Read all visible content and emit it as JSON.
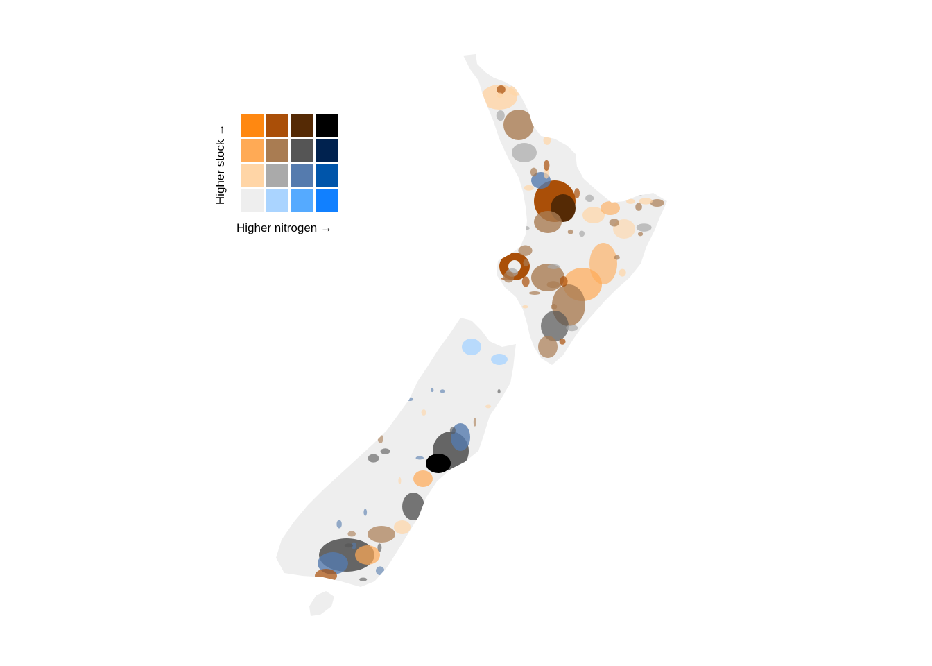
{
  "legend": {
    "y_label": "Higher stock →",
    "x_label": "Higher nitrogen →",
    "grid": [
      [
        "#ff8811",
        "#aa4f08",
        "#552a05",
        "#000000"
      ],
      [
        "#ffaa55",
        "#a97c52",
        "#555555",
        "#00224f"
      ],
      [
        "#ffd5a6",
        "#aaaaaa",
        "#557bae",
        "#0055aa"
      ],
      [
        "#eeeeee",
        "#aad4ff",
        "#55aaff",
        "#1180ff"
      ]
    ]
  },
  "colors": {
    "land_base": "#eeeeee",
    "background": "#ffffff"
  }
}
